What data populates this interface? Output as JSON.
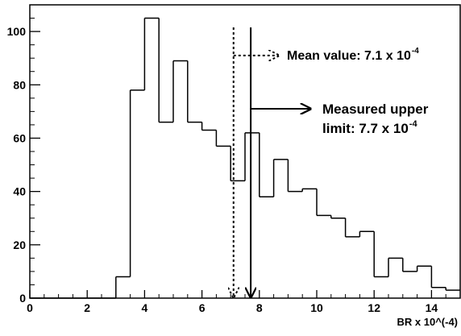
{
  "chart_data": {
    "type": "bar",
    "subtype": "histogram",
    "title": "",
    "xlabel": "BR x 10^(-4)",
    "ylabel": "",
    "xlim": [
      0,
      15
    ],
    "ylim": [
      0,
      110
    ],
    "x_ticks": [
      0,
      2,
      4,
      6,
      8,
      10,
      12,
      14
    ],
    "y_ticks": [
      0,
      20,
      40,
      60,
      80,
      100
    ],
    "grid": false,
    "legend": "none",
    "bin_width": 0.5,
    "bins": [
      {
        "x0": 3.0,
        "x1": 3.5,
        "value": 8
      },
      {
        "x0": 3.5,
        "x1": 4.0,
        "value": 78
      },
      {
        "x0": 4.0,
        "x1": 4.5,
        "value": 105
      },
      {
        "x0": 4.5,
        "x1": 5.0,
        "value": 66
      },
      {
        "x0": 5.0,
        "x1": 5.5,
        "value": 89
      },
      {
        "x0": 5.5,
        "x1": 6.0,
        "value": 66
      },
      {
        "x0": 6.0,
        "x1": 6.5,
        "value": 63
      },
      {
        "x0": 6.5,
        "x1": 7.0,
        "value": 57
      },
      {
        "x0": 7.0,
        "x1": 7.5,
        "value": 44
      },
      {
        "x0": 7.5,
        "x1": 8.0,
        "value": 62
      },
      {
        "x0": 8.0,
        "x1": 8.5,
        "value": 38
      },
      {
        "x0": 8.5,
        "x1": 9.0,
        "value": 52
      },
      {
        "x0": 9.0,
        "x1": 9.5,
        "value": 40
      },
      {
        "x0": 9.5,
        "x1": 10.0,
        "value": 41
      },
      {
        "x0": 10.0,
        "x1": 10.5,
        "value": 31
      },
      {
        "x0": 10.5,
        "x1": 11.0,
        "value": 30
      },
      {
        "x0": 11.0,
        "x1": 11.5,
        "value": 23
      },
      {
        "x0": 11.5,
        "x1": 12.0,
        "value": 25
      },
      {
        "x0": 12.0,
        "x1": 12.5,
        "value": 8
      },
      {
        "x0": 12.5,
        "x1": 13.0,
        "value": 15
      },
      {
        "x0": 13.0,
        "x1": 13.5,
        "value": 10
      },
      {
        "x0": 13.5,
        "x1": 14.0,
        "value": 12
      },
      {
        "x0": 14.0,
        "x1": 14.5,
        "value": 4
      },
      {
        "x0": 14.5,
        "x1": 15.0,
        "value": 3
      }
    ],
    "annotations": [
      {
        "id": "mean",
        "x": 7.1,
        "line_style": "dotted",
        "label_base": "Mean value: 7.1 x 10",
        "label_exp": "-4",
        "arrow_y": 91
      },
      {
        "id": "limit",
        "x": 7.7,
        "line_style": "solid",
        "label_line1": "Measured upper",
        "label_base": "limit: 7.7 x 10",
        "label_exp": "-4",
        "arrow_y": 71
      }
    ]
  }
}
